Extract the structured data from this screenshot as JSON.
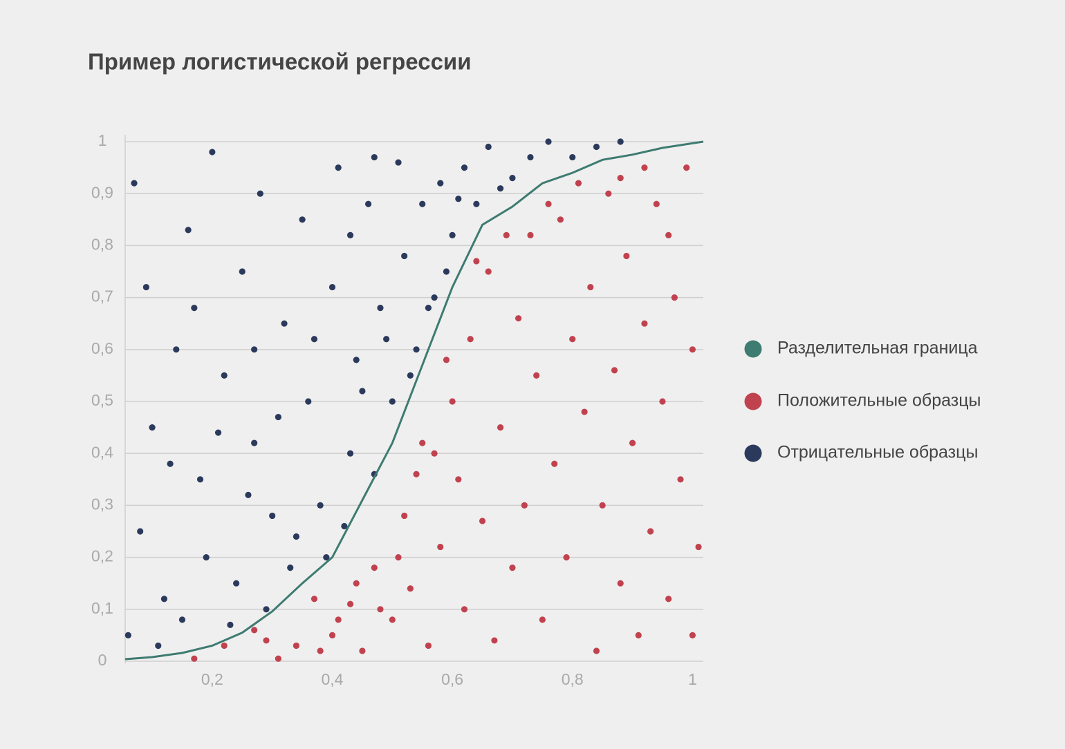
{
  "chart_data": {
    "type": "scatter",
    "title": "Пример логистической регрессии",
    "xlim": [
      0.055,
      1.018
    ],
    "ylim": [
      0,
      1
    ],
    "xticks": [
      {
        "value": 0.2,
        "label": "0,2"
      },
      {
        "value": 0.4,
        "label": "0,4"
      },
      {
        "value": 0.6,
        "label": "0,6"
      },
      {
        "value": 0.8,
        "label": "0,8"
      },
      1
    ],
    "yticks": [
      0,
      {
        "value": 0.1,
        "label": "0,1"
      },
      {
        "value": 0.2,
        "label": "0,2"
      },
      {
        "value": 0.3,
        "label": "0,3"
      },
      {
        "value": 0.4,
        "label": "0,4"
      },
      {
        "value": 0.5,
        "label": "0,5"
      },
      {
        "value": 0.6,
        "label": "0,6"
      },
      {
        "value": 0.7,
        "label": "0,7"
      },
      {
        "value": 0.8,
        "label": "0,8"
      },
      {
        "value": 0.9,
        "label": "0,9"
      },
      1
    ],
    "grid": true,
    "legend": "right",
    "series": [
      {
        "name": "Разделительная граница",
        "type": "line",
        "color": "#3e7b70",
        "x": [
          0.055,
          0.1,
          0.15,
          0.2,
          0.25,
          0.3,
          0.35,
          0.4,
          0.45,
          0.5,
          0.55,
          0.6,
          0.65,
          0.7,
          0.75,
          0.8,
          0.85,
          0.9,
          0.95,
          1.018
        ],
        "values": [
          0.004,
          0.008,
          0.016,
          0.03,
          0.055,
          0.096,
          0.15,
          0.2,
          0.31,
          0.42,
          0.57,
          0.72,
          0.84,
          0.875,
          0.92,
          0.94,
          0.965,
          0.975,
          0.988,
          1.0
        ]
      },
      {
        "name": "Положительные образцы",
        "color": "#c1424f",
        "x": [
          0.17,
          0.22,
          0.27,
          0.31,
          0.34,
          0.37,
          0.4,
          0.43,
          0.45,
          0.47,
          0.5,
          0.52,
          0.53,
          0.55,
          0.56,
          0.58,
          0.6,
          0.61,
          0.62,
          0.63,
          0.65,
          0.66,
          0.67,
          0.68,
          0.7,
          0.71,
          0.72,
          0.73,
          0.74,
          0.75,
          0.77,
          0.78,
          0.79,
          0.8,
          0.82,
          0.83,
          0.84,
          0.85,
          0.86,
          0.87,
          0.88,
          0.89,
          0.9,
          0.91,
          0.92,
          0.93,
          0.94,
          0.95,
          0.96,
          0.97,
          0.98,
          0.99,
          1.0,
          1.01,
          1.0,
          0.96,
          0.92,
          0.88,
          0.81,
          0.76,
          0.69,
          0.64,
          0.59,
          0.57,
          0.54,
          0.51,
          0.48,
          0.44,
          0.41,
          0.38,
          0.29
        ],
        "values": [
          0.005,
          0.03,
          0.06,
          0.005,
          0.03,
          0.12,
          0.05,
          0.11,
          0.02,
          0.18,
          0.08,
          0.28,
          0.14,
          0.42,
          0.03,
          0.22,
          0.5,
          0.35,
          0.1,
          0.62,
          0.27,
          0.75,
          0.04,
          0.45,
          0.18,
          0.66,
          0.3,
          0.82,
          0.55,
          0.08,
          0.38,
          0.85,
          0.2,
          0.62,
          0.48,
          0.72,
          0.02,
          0.3,
          0.9,
          0.56,
          0.15,
          0.78,
          0.42,
          0.05,
          0.65,
          0.25,
          0.88,
          0.5,
          0.12,
          0.7,
          0.35,
          0.95,
          0.6,
          0.22,
          0.05,
          0.82,
          0.95,
          0.93,
          0.92,
          0.88,
          0.82,
          0.77,
          0.58,
          0.4,
          0.36,
          0.2,
          0.1,
          0.15,
          0.08,
          0.02,
          0.04
        ]
      },
      {
        "name": "Отрицательные образцы",
        "color": "#2b3a5c",
        "x": [
          0.07,
          0.09,
          0.1,
          0.12,
          0.08,
          0.14,
          0.16,
          0.18,
          0.2,
          0.22,
          0.24,
          0.25,
          0.27,
          0.28,
          0.3,
          0.32,
          0.33,
          0.35,
          0.36,
          0.38,
          0.4,
          0.41,
          0.43,
          0.44,
          0.46,
          0.47,
          0.48,
          0.5,
          0.51,
          0.52,
          0.54,
          0.55,
          0.57,
          0.58,
          0.6,
          0.62,
          0.64,
          0.66,
          0.7,
          0.73,
          0.76,
          0.8,
          0.84,
          0.88,
          0.06,
          0.11,
          0.15,
          0.19,
          0.23,
          0.26,
          0.29,
          0.31,
          0.34,
          0.37,
          0.39,
          0.42,
          0.45,
          0.49,
          0.53,
          0.56,
          0.13,
          0.17,
          0.21,
          0.27,
          0.43,
          0.47,
          0.59,
          0.61,
          0.68
        ],
        "values": [
          0.92,
          0.72,
          0.45,
          0.12,
          0.25,
          0.6,
          0.83,
          0.35,
          0.98,
          0.55,
          0.15,
          0.75,
          0.42,
          0.9,
          0.28,
          0.65,
          0.18,
          0.85,
          0.5,
          0.3,
          0.72,
          0.95,
          0.4,
          0.58,
          0.88,
          0.36,
          0.68,
          0.5,
          0.96,
          0.78,
          0.6,
          0.88,
          0.7,
          0.92,
          0.82,
          0.95,
          0.88,
          0.99,
          0.93,
          0.97,
          1.0,
          0.97,
          0.99,
          1.0,
          0.05,
          0.03,
          0.08,
          0.2,
          0.07,
          0.32,
          0.1,
          0.47,
          0.24,
          0.62,
          0.2,
          0.26,
          0.52,
          0.62,
          0.55,
          0.68,
          0.38,
          0.68,
          0.44,
          0.6,
          0.82,
          0.97,
          0.75,
          0.89,
          0.91
        ]
      }
    ]
  }
}
